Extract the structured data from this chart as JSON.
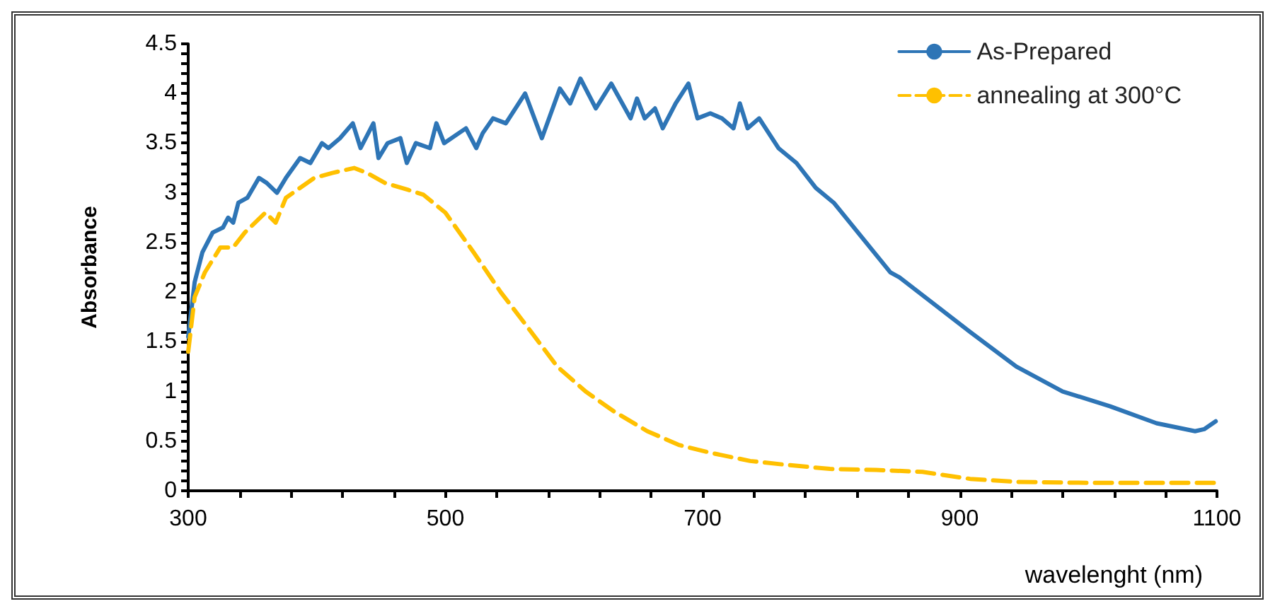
{
  "chart_data": {
    "type": "line",
    "xlabel": "wavelenght (nm)",
    "ylabel": "Absorbance",
    "xlim": [
      300,
      1100
    ],
    "ylim": [
      0,
      4.5
    ],
    "xticks": [
      300,
      {
        "value": 340,
        "label": null
      },
      {
        "value": 380,
        "label": null
      },
      {
        "value": 420,
        "label": null
      },
      {
        "value": 460,
        "label": null
      },
      500,
      {
        "value": 540,
        "label": null
      },
      {
        "value": 580,
        "label": null
      },
      {
        "value": 620,
        "label": null
      },
      {
        "value": 660,
        "label": null
      },
      700,
      {
        "value": 740,
        "label": null
      },
      {
        "value": 780,
        "label": null
      },
      {
        "value": 820,
        "label": null
      },
      {
        "value": 860,
        "label": null
      },
      900,
      {
        "value": 940,
        "label": null
      },
      {
        "value": 980,
        "label": null
      },
      {
        "value": 1020,
        "label": null
      },
      {
        "value": 1060,
        "label": null
      },
      1100
    ],
    "yticks": [
      0,
      {
        "value": 0.1,
        "label": null
      },
      {
        "value": 0.2,
        "label": null
      },
      {
        "value": 0.3,
        "label": null
      },
      {
        "value": 0.4,
        "label": null
      },
      0.5,
      {
        "value": 0.6,
        "label": null
      },
      {
        "value": 0.7,
        "label": null
      },
      {
        "value": 0.8,
        "label": null
      },
      {
        "value": 0.9,
        "label": null
      },
      1,
      {
        "value": 1.1,
        "label": null
      },
      {
        "value": 1.2,
        "label": null
      },
      {
        "value": 1.3,
        "label": null
      },
      {
        "value": 1.4,
        "label": null
      },
      1.5,
      {
        "value": 1.6,
        "label": null
      },
      {
        "value": 1.7,
        "label": null
      },
      {
        "value": 1.8,
        "label": null
      },
      {
        "value": 1.9,
        "label": null
      },
      2,
      {
        "value": 2.1,
        "label": null
      },
      {
        "value": 2.2,
        "label": null
      },
      {
        "value": 2.3,
        "label": null
      },
      {
        "value": 2.4,
        "label": null
      },
      2.5,
      {
        "value": 2.6,
        "label": null
      },
      {
        "value": 2.7,
        "label": null
      },
      {
        "value": 2.8,
        "label": null
      },
      {
        "value": 2.9,
        "label": null
      },
      3,
      {
        "value": 3.1,
        "label": null
      },
      {
        "value": 3.2,
        "label": null
      },
      {
        "value": 3.3,
        "label": null
      },
      {
        "value": 3.4,
        "label": null
      },
      3.5,
      {
        "value": 3.6,
        "label": null
      },
      {
        "value": 3.7,
        "label": null
      },
      {
        "value": 3.8,
        "label": null
      },
      {
        "value": 3.9,
        "label": null
      },
      4,
      {
        "value": 4.1,
        "label": null
      },
      {
        "value": 4.2,
        "label": null
      },
      {
        "value": 4.3,
        "label": null
      },
      {
        "value": 4.4,
        "label": null
      },
      4.5
    ],
    "grid": false,
    "legend": "top right",
    "marker": "none",
    "line_style": "solid",
    "series": [
      {
        "name": "As-Prepared",
        "color": "#2e75b6",
        "x": [
          300,
          305,
          311,
          319,
          327,
          331,
          335,
          339,
          346,
          355,
          361,
          369,
          376,
          387,
          395,
          404,
          409,
          418,
          428,
          434,
          444,
          448,
          455,
          465,
          470,
          477,
          488,
          493,
          499,
          516,
          524,
          529,
          537,
          547,
          562,
          575,
          589,
          597,
          605,
          617,
          629,
          644,
          649,
          655,
          663,
          669,
          679,
          689,
          696,
          706,
          715,
          724,
          729,
          735,
          744,
          759,
          773,
          788,
          802,
          824,
          846,
          853,
          908,
          944,
          980,
          1017,
          1053,
          1083,
          1090,
          1099
        ],
        "values": [
          1.55,
          2.1,
          2.4,
          2.6,
          2.65,
          2.75,
          2.7,
          2.9,
          2.95,
          3.15,
          3.1,
          3.0,
          3.15,
          3.35,
          3.3,
          3.5,
          3.45,
          3.55,
          3.7,
          3.45,
          3.7,
          3.35,
          3.5,
          3.55,
          3.3,
          3.5,
          3.45,
          3.7,
          3.5,
          3.65,
          3.45,
          3.6,
          3.75,
          3.7,
          4.0,
          3.55,
          4.05,
          3.9,
          4.15,
          3.85,
          4.1,
          3.75,
          3.95,
          3.75,
          3.85,
          3.65,
          3.9,
          4.1,
          3.75,
          3.8,
          3.75,
          3.65,
          3.9,
          3.65,
          3.75,
          3.45,
          3.3,
          3.05,
          2.9,
          2.55,
          2.2,
          2.15,
          1.6,
          1.25,
          1.0,
          0.85,
          0.68,
          0.6,
          0.62,
          0.7
        ]
      },
      {
        "name": "annealing at 300°C",
        "color": "#ffc000",
        "line_style": "dashed",
        "x": [
          300,
          305,
          313,
          325,
          335,
          344,
          360,
          368,
          376,
          398,
          412,
          429,
          439,
          453,
          471,
          483,
          500,
          522,
          543,
          562,
          587,
          609,
          631,
          657,
          682,
          707,
          737,
          766,
          799,
          835,
          871,
          908,
          944,
          999,
          1083,
          1099
        ],
        "values": [
          1.4,
          1.95,
          2.2,
          2.45,
          2.45,
          2.6,
          2.8,
          2.7,
          2.95,
          3.15,
          3.2,
          3.25,
          3.2,
          3.1,
          3.03,
          2.98,
          2.8,
          2.4,
          2.0,
          1.68,
          1.25,
          1.0,
          0.8,
          0.6,
          0.46,
          0.38,
          0.3,
          0.26,
          0.22,
          0.21,
          0.19,
          0.12,
          0.09,
          0.08,
          0.08,
          0.08
        ]
      }
    ]
  }
}
